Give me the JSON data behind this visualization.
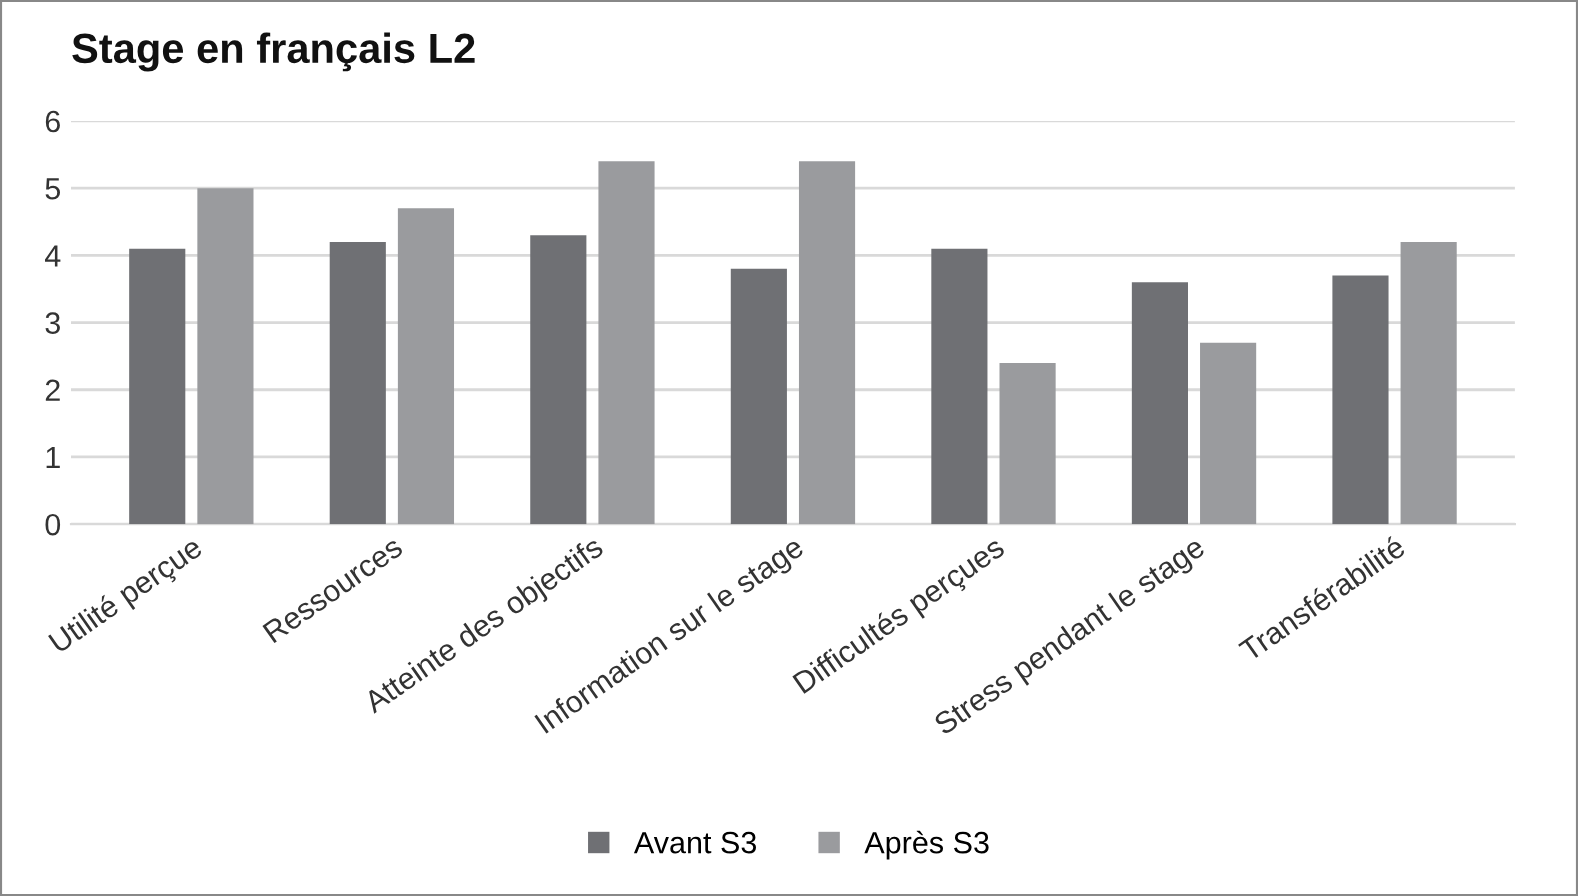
{
  "chart_data": {
    "type": "bar",
    "title": "Stage en français L2",
    "categories": [
      "Utilité perçue",
      "Ressources",
      "Atteinte des objectifs",
      "Information sur le stage",
      "Difficultés perçues",
      "Stress pendant le stage",
      "Transférabilité"
    ],
    "series": [
      {
        "name": "Avant S3",
        "color": "#6f7074",
        "values": [
          4.1,
          4.2,
          4.3,
          3.8,
          4.1,
          3.6,
          3.7
        ]
      },
      {
        "name": "Après S3",
        "color": "#9a9b9e",
        "values": [
          5.0,
          4.7,
          5.4,
          5.4,
          2.4,
          2.7,
          4.2
        ]
      }
    ],
    "ylim": [
      0,
      6
    ],
    "yticks": [
      0,
      1,
      2,
      3,
      4,
      5,
      6
    ],
    "grid": "y",
    "legend": "bottom"
  }
}
